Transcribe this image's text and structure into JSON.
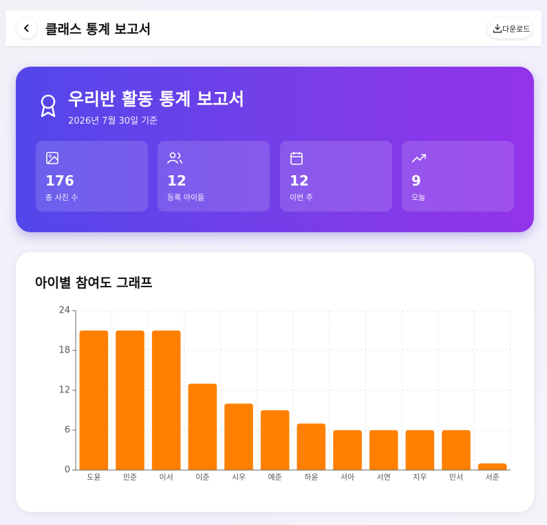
{
  "header": {
    "title": "클래스 통계 보고서",
    "download": "다운로드"
  },
  "report": {
    "title": "우리반 활동 통계 보고서",
    "date": "2026년 7월 30일 기준"
  },
  "stats": [
    {
      "value": 176,
      "label": "총 사진 수"
    },
    {
      "value": 12,
      "label": "등록 아이들"
    },
    {
      "value": 12,
      "label": "이번 주"
    },
    {
      "value": 9,
      "label": "오늘"
    }
  ],
  "chart_data": {
    "type": "bar",
    "title": "아이별 참여도 그래프",
    "categories": [
      "도윤",
      "민준",
      "이서",
      "이준",
      "시우",
      "예준",
      "하윤",
      "서아",
      "서연",
      "지우",
      "민서",
      "서준"
    ],
    "values": [
      21,
      21,
      21,
      13,
      10,
      9,
      7,
      6,
      6,
      6,
      6,
      1
    ],
    "color": "#ff8000",
    "ylim": [
      0,
      24
    ],
    "yticks": [
      0,
      6,
      12,
      18,
      24
    ],
    "grid": true
  }
}
